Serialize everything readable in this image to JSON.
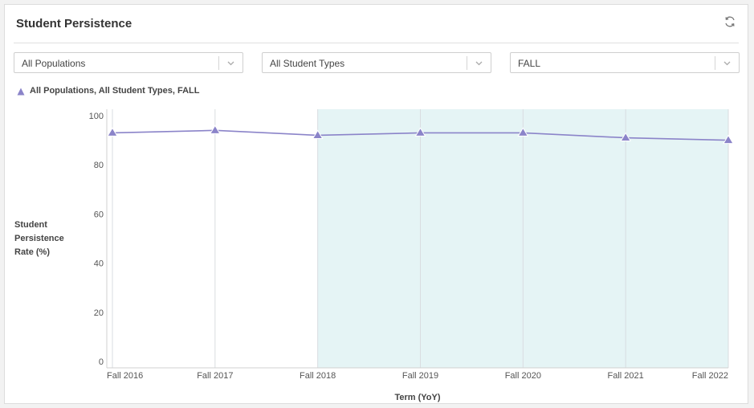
{
  "card": {
    "title": "Student Persistence",
    "refresh_icon": "refresh-icon"
  },
  "filters": {
    "population": {
      "value": "All Populations"
    },
    "student_type": {
      "value": "All Student Types"
    },
    "term": {
      "value": "FALL"
    }
  },
  "colors": {
    "series": "#8b84c9",
    "highlight_band": "#e5f4f5",
    "grid": "#d9dde0"
  },
  "chart_data": {
    "type": "line",
    "xlabel": "Term (YoY)",
    "ylabel": "Student Persistence Rate (%)",
    "categories": [
      "Fall 2016",
      "Fall 2017",
      "Fall 2018",
      "Fall 2019",
      "Fall 2020",
      "Fall 2021",
      "Fall 2022"
    ],
    "yticks": [
      0,
      20,
      40,
      60,
      80,
      100
    ],
    "ylim": [
      0,
      100
    ],
    "highlight_range": [
      "Fall 2018",
      "Fall 2022"
    ],
    "marker": "triangle",
    "series": [
      {
        "name": "All Populations, All Student Types, FALL",
        "values": [
          93,
          94,
          92,
          93,
          93,
          91,
          90
        ]
      }
    ]
  }
}
